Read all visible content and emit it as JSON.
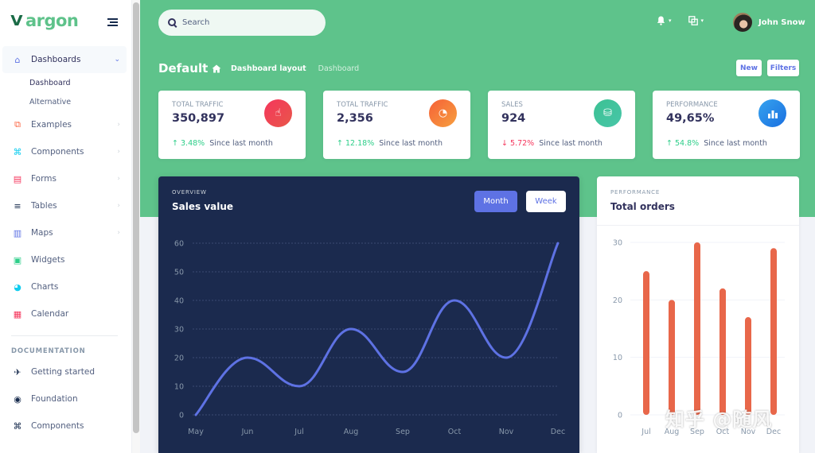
{
  "brand": {
    "name": "argon",
    "logo_glyph": "V"
  },
  "sidebar": {
    "items": [
      {
        "label": "Dashboards",
        "icon": "shop-icon",
        "glyph": "⌂",
        "color": "#5e72e4",
        "chevron": "⌄",
        "expanded": true,
        "children": [
          {
            "label": "Dashboard"
          },
          {
            "label": "Alternative"
          }
        ]
      },
      {
        "label": "Examples",
        "icon": "ungroup-icon",
        "glyph": "⧉",
        "color": "#fb6340",
        "chevron": "›"
      },
      {
        "label": "Components",
        "icon": "components-icon",
        "glyph": "⌘",
        "color": "#11cdef",
        "chevron": "›"
      },
      {
        "label": "Forms",
        "icon": "forms-icon",
        "glyph": "▤",
        "color": "#f5365c",
        "chevron": "›"
      },
      {
        "label": "Tables",
        "icon": "tables-icon",
        "glyph": "≡",
        "color": "#172b4d",
        "chevron": "›"
      },
      {
        "label": "Maps",
        "icon": "maps-icon",
        "glyph": "▥",
        "color": "#5e72e4",
        "chevron": "›"
      },
      {
        "label": "Widgets",
        "icon": "widgets-icon",
        "glyph": "▣",
        "color": "#2dce89"
      },
      {
        "label": "Charts",
        "icon": "charts-icon",
        "glyph": "◕",
        "color": "#11cdef"
      },
      {
        "label": "Calendar",
        "icon": "calendar-icon",
        "glyph": "▦",
        "color": "#f5365c"
      }
    ],
    "doc_heading": "DOCUMENTATION",
    "doc_items": [
      {
        "label": "Getting started",
        "icon": "spaceship-icon",
        "glyph": "✈"
      },
      {
        "label": "Foundation",
        "icon": "palette-icon",
        "glyph": "◉"
      },
      {
        "label": "Components",
        "icon": "ui-components-icon",
        "glyph": "⌘"
      }
    ]
  },
  "header": {
    "search_placeholder": "Search",
    "notifications_icon": "bell-icon",
    "bell_glyph": "🔔",
    "shortcuts_glyph": "⧉",
    "caret": "▾",
    "user_name": "John Snow",
    "page_title": "Default",
    "breadcrumb": [
      {
        "label": "Dashboard layout"
      },
      {
        "label": "Dashboard"
      }
    ],
    "home_glyph": "⌂",
    "buttons": {
      "new": "New",
      "filters": "Filters"
    }
  },
  "stats": [
    {
      "label": "Total traffic",
      "value": "350,897",
      "change": "3.48%",
      "direction": "up",
      "arrow": "↑",
      "since": "Since last month",
      "icon": "hand-pointer-icon",
      "glyph": "☝",
      "gradient": [
        "#f5365c",
        "#f56036"
      ]
    },
    {
      "label": "Total traffic",
      "value": "2,356",
      "change": "12.18%",
      "direction": "up",
      "arrow": "↑",
      "since": "Since last month",
      "icon": "chart-pie-icon",
      "glyph": "◔",
      "gradient": [
        "#fb6340",
        "#fbb140"
      ]
    },
    {
      "label": "Sales",
      "value": "924",
      "change": "5.72%",
      "direction": "down",
      "arrow": "↓",
      "since": "Since last month",
      "icon": "money-coins-icon",
      "glyph": "⛁",
      "gradient": [
        "#2dce89",
        "#2dcecc"
      ]
    },
    {
      "label": "Performance",
      "value": "49,65%",
      "change": "54.8%",
      "direction": "up",
      "arrow": "↑",
      "since": "Since last month",
      "icon": "chart-bar-icon",
      "glyph": "▮",
      "gradient": [
        "#11cdef",
        "#1171ef"
      ]
    }
  ],
  "sales_card": {
    "kicker": "OVERVIEW",
    "title": "Sales value",
    "toggle": {
      "month": "Month",
      "week": "Week",
      "active": "Month"
    }
  },
  "orders_card": {
    "kicker": "PERFORMANCE",
    "title": "Total orders"
  },
  "colors": {
    "header_green": "#5ec38b",
    "primary": "#5e72e4",
    "line": "#5e72e4",
    "bars": "#e8674a",
    "dark_card": "#1b2a4e"
  },
  "watermark": "知乎 @随风",
  "chart_data": [
    {
      "type": "line",
      "title": "Sales value",
      "subtitle": "OVERVIEW",
      "categories": [
        "May",
        "Jun",
        "Jul",
        "Aug",
        "Sep",
        "Oct",
        "Nov",
        "Dec"
      ],
      "series": [
        {
          "name": "Sales",
          "values": [
            0,
            20,
            10,
            30,
            15,
            40,
            20,
            60
          ]
        }
      ],
      "yticks": [
        0,
        10,
        20,
        30,
        40,
        50,
        60
      ],
      "ylim": [
        0,
        60
      ],
      "grid": true,
      "xlabel": "",
      "ylabel": ""
    },
    {
      "type": "bar",
      "title": "Total orders",
      "subtitle": "PERFORMANCE",
      "categories": [
        "Jul",
        "Aug",
        "Sep",
        "Oct",
        "Nov",
        "Dec"
      ],
      "series": [
        {
          "name": "Orders",
          "values": [
            25,
            20,
            30,
            22,
            17,
            29
          ]
        }
      ],
      "yticks": [
        0,
        10,
        20,
        30
      ],
      "ylim": [
        0,
        30
      ],
      "grid": true,
      "xlabel": "",
      "ylabel": ""
    }
  ]
}
